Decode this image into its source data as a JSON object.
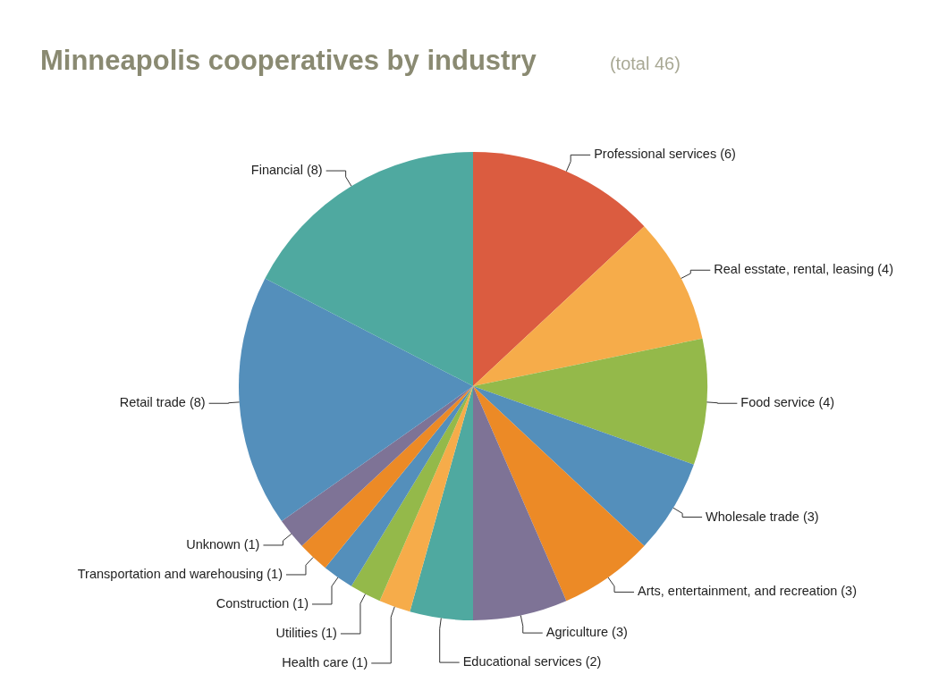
{
  "chart_data": {
    "type": "pie",
    "title": "Minneapolis cooperatives by industry",
    "subtitle": "(total 46)",
    "categories": [
      "Professional services (6)",
      "Real esstate, rental, leasing (4)",
      "Food service (4)",
      "Wholesale trade (3)",
      "Arts, entertainment, and recreation (3)",
      "Agriculture (3)",
      "Educational services (2)",
      "Health care (1)",
      "Utilities (1)",
      "Construction (1)",
      "Transportation and warehousing (1)",
      "Unknown (1)",
      "Retail trade (8)",
      "Financial (8)"
    ],
    "values": [
      6,
      4,
      4,
      3,
      3,
      3,
      2,
      1,
      1,
      1,
      1,
      1,
      8,
      8
    ],
    "colors": [
      "#db5c40",
      "#f6ac4a",
      "#94b94a",
      "#548fbb",
      "#ec8a26",
      "#7e7396",
      "#4fa9a0",
      "#f6ac4a",
      "#94b94a",
      "#548fbb",
      "#ec8a26",
      "#7e7396",
      "#548fbb",
      "#4fa9a0"
    ]
  }
}
